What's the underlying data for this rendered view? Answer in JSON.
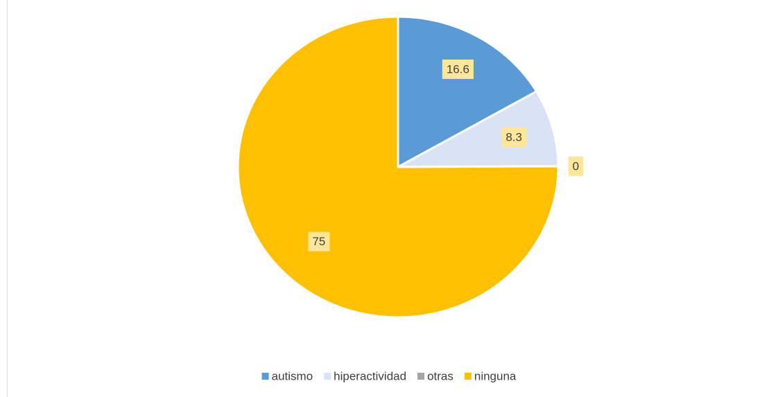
{
  "chart_data": {
    "type": "pie",
    "categories": [
      "autismo",
      "hiperactividad",
      "otras",
      "ninguna"
    ],
    "values": [
      16.6,
      8.3,
      0,
      75
    ],
    "colors": [
      "#5b9bd5",
      "#dae3f3",
      "#a5a5a5",
      "#ffc000"
    ],
    "legend": "bottom"
  }
}
